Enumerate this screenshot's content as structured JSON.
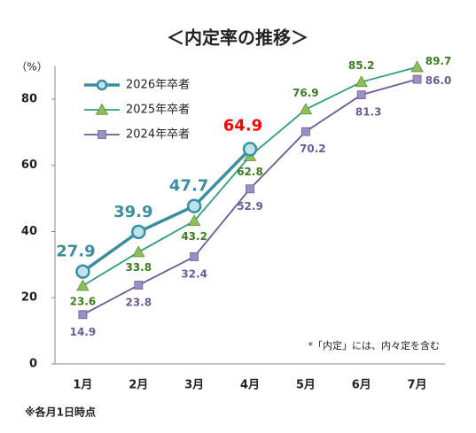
{
  "chart_data": {
    "type": "line",
    "title": "＜内定率の推移＞",
    "y_label": "（%）",
    "annotation": "*「内定」には、内々定を含む",
    "footnote": "※各月1日時点",
    "categories": [
      "1月",
      "2月",
      "3月",
      "4月",
      "5月",
      "6月",
      "7月"
    ],
    "ylim": [
      0,
      90
    ],
    "yticks": [
      0,
      20,
      40,
      60,
      80
    ],
    "grid": false,
    "legend": "upper left",
    "series": [
      {
        "name": "2024年卒者",
        "color": "#6b5b95",
        "marker": "square",
        "marker_color": "#9b8fc4",
        "label_color": "#6b5b95",
        "values": [
          14.9,
          23.8,
          32.4,
          52.9,
          70.2,
          81.3,
          86.0
        ],
        "value_labels": [
          "14.9",
          "23.8",
          "32.4",
          "52.9",
          "70.2",
          "81.3",
          "86.0"
        ]
      },
      {
        "name": "2025年卒者",
        "color": "#2e9e7e",
        "marker": "triangle",
        "marker_color": "#8cbf5a",
        "label_color": "#3a7d1e",
        "values": [
          23.6,
          33.8,
          43.2,
          62.8,
          76.9,
          85.2,
          89.7
        ],
        "value_labels": [
          "23.6",
          "33.8",
          "43.2",
          "62.8",
          "76.9",
          "85.2",
          "89.7"
        ]
      },
      {
        "name": "2026年卒者",
        "color": "#3a8ea0",
        "marker": "circle",
        "marker_color": "#bfe3ec",
        "label_color": "#3a8ea0",
        "value_label_colors": [
          null,
          null,
          null,
          "#ff0000"
        ],
        "values": [
          27.9,
          39.9,
          47.7,
          64.9,
          null,
          null,
          null
        ],
        "value_labels": [
          "27.9",
          "39.9",
          "47.7",
          "64.9",
          null,
          null,
          null
        ]
      }
    ]
  }
}
